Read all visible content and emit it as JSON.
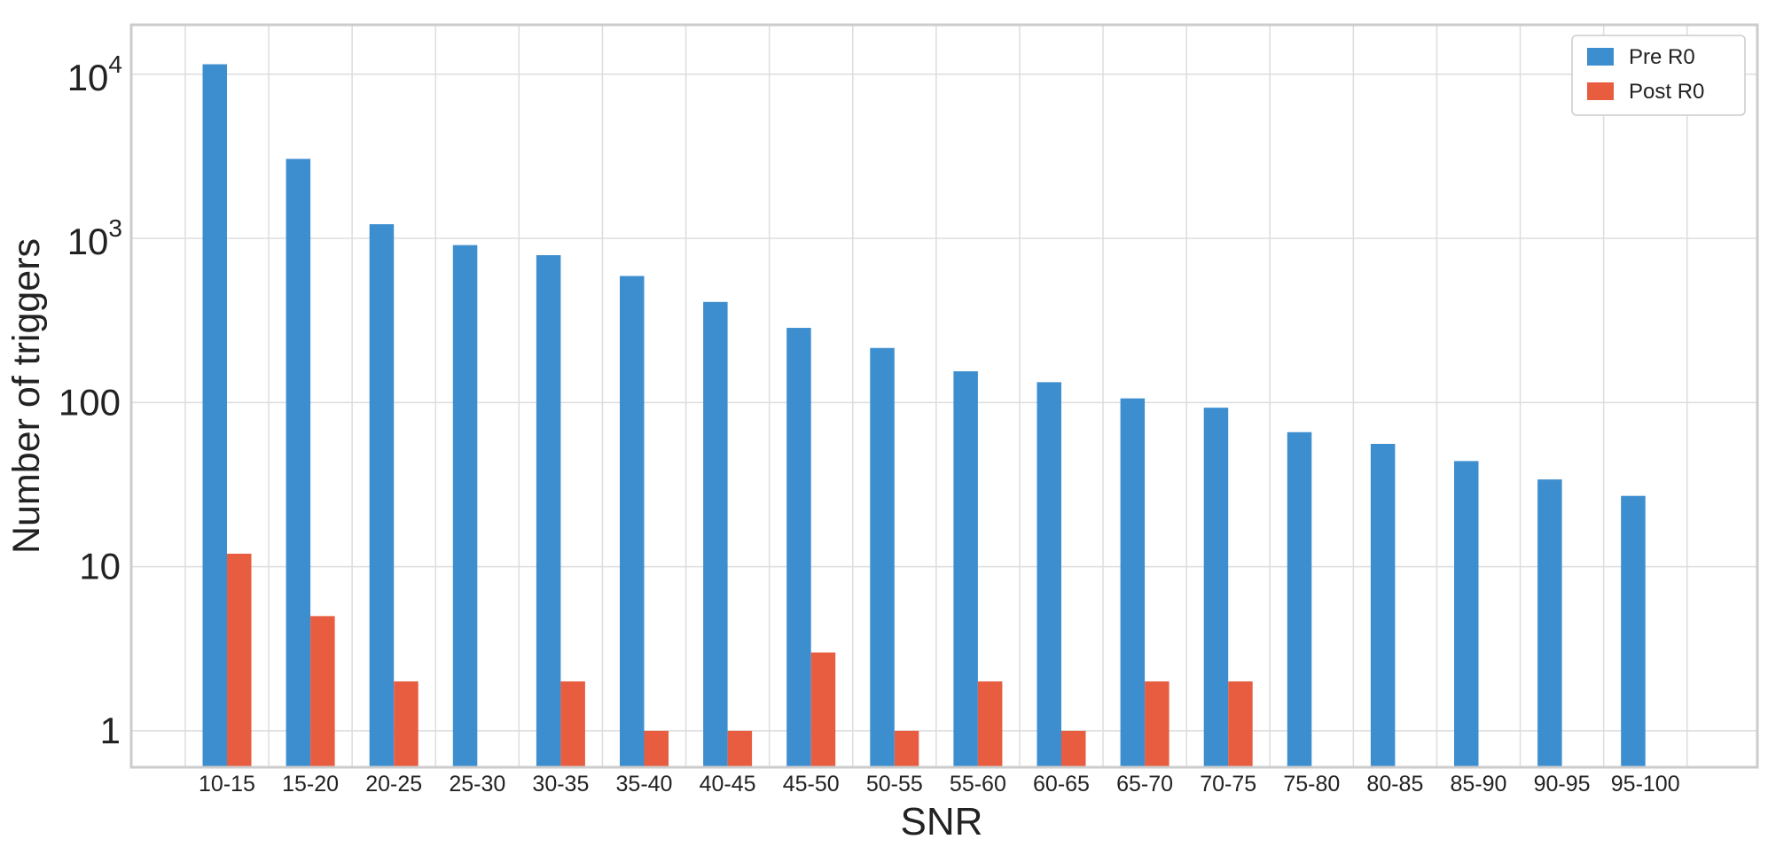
{
  "chart_data": {
    "type": "bar",
    "xlabel": "SNR",
    "ylabel": "Number of triggers",
    "yscale": "log",
    "ylim": [
      0.6,
      20000
    ],
    "grid": true,
    "legend_position": "top-right",
    "categories": [
      "10-15",
      "15-20",
      "20-25",
      "25-30",
      "30-35",
      "35-40",
      "40-45",
      "45-50",
      "50-55",
      "55-60",
      "60-65",
      "65-70",
      "70-75",
      "75-80",
      "80-85",
      "85-90",
      "90-95",
      "95-100"
    ],
    "y_ticks": [
      {
        "value": 1,
        "label": "1"
      },
      {
        "value": 10,
        "label": "10"
      },
      {
        "value": 100,
        "label": "100"
      },
      {
        "value": 1000,
        "label": "10",
        "exponent": "3"
      },
      {
        "value": 10000,
        "label": "10",
        "exponent": "4"
      }
    ],
    "series": [
      {
        "name": "Pre R0",
        "color": "#3d8ecf",
        "values": [
          11500,
          3050,
          1220,
          910,
          790,
          590,
          410,
          285,
          215,
          155,
          133,
          106,
          93,
          66,
          56,
          44,
          34,
          27
        ]
      },
      {
        "name": "Post R0",
        "color": "#e85c40",
        "values": [
          12,
          5,
          2,
          null,
          2,
          1,
          1,
          3,
          1,
          2,
          1,
          2,
          2,
          null,
          null,
          null,
          null,
          null
        ]
      }
    ]
  }
}
